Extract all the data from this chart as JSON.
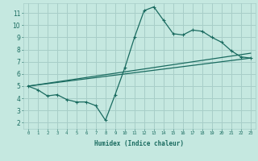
{
  "xlabel": "Humidex (Indice chaleur)",
  "bg_color": "#c5e8e0",
  "grid_color": "#a8cec8",
  "line_color": "#1a6b60",
  "xlim": [
    -0.5,
    23.5
  ],
  "ylim": [
    1.5,
    11.8
  ],
  "xticks": [
    0,
    1,
    2,
    3,
    4,
    5,
    6,
    7,
    8,
    9,
    10,
    11,
    12,
    13,
    14,
    15,
    16,
    17,
    18,
    19,
    20,
    21,
    22,
    23
  ],
  "yticks": [
    2,
    3,
    4,
    5,
    6,
    7,
    8,
    9,
    10,
    11
  ],
  "data_line": {
    "x": [
      0,
      1,
      2,
      3,
      4,
      5,
      6,
      7,
      8,
      9,
      10,
      11,
      12,
      13,
      14,
      15,
      16,
      17,
      18,
      19,
      20,
      21,
      22,
      23
    ],
    "y": [
      5.0,
      4.7,
      4.2,
      4.3,
      3.9,
      3.7,
      3.7,
      3.4,
      2.2,
      4.3,
      6.5,
      9.0,
      11.2,
      11.5,
      10.4,
      9.3,
      9.2,
      9.6,
      9.5,
      9.0,
      8.6,
      7.9,
      7.4,
      7.3
    ]
  },
  "trend_line1": {
    "x": [
      0,
      23
    ],
    "y": [
      5.0,
      7.3
    ]
  },
  "trend_line2": {
    "x": [
      0,
      23
    ],
    "y": [
      5.0,
      7.7
    ]
  },
  "xlabel_fontsize": 5.5,
  "xlabel_fontweight": "bold",
  "tick_fontsize_x": 4.0,
  "tick_fontsize_y": 5.5
}
